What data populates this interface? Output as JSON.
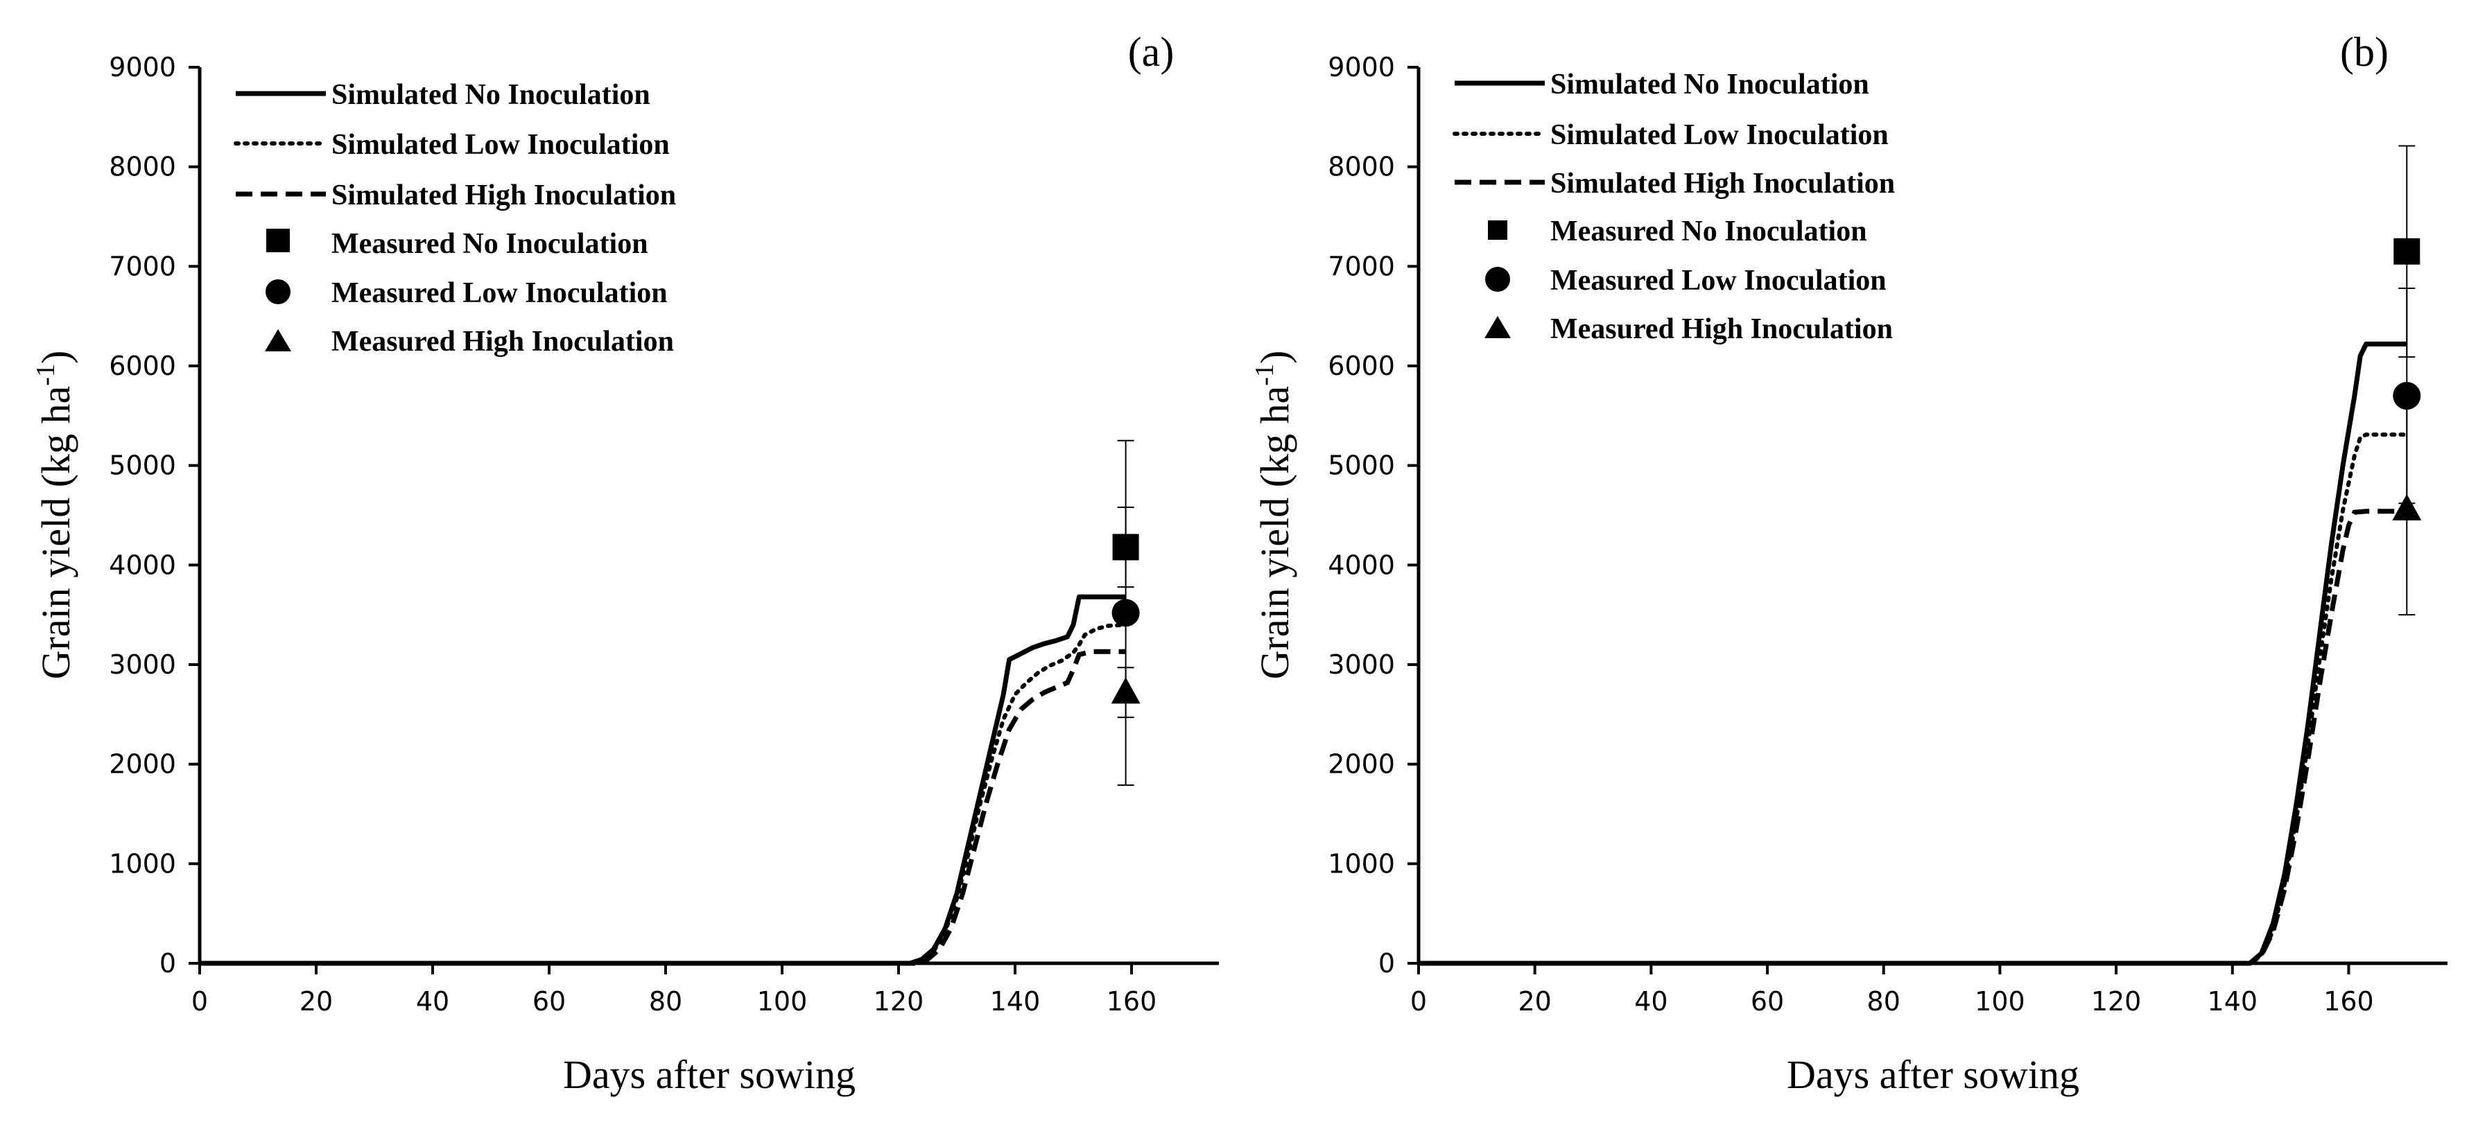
{
  "chart_data": [
    {
      "type": "line",
      "panel_label": "(a)",
      "xlabel": "Days after sowing",
      "ylabel_main": "Grain yield (kg ha",
      "ylabel_sup": "-1",
      "ylabel_close": ")",
      "xlim": [
        0,
        175
      ],
      "ylim": [
        0,
        9000
      ],
      "xticks": [
        "0",
        "20",
        "40",
        "60",
        "80",
        "100",
        "120",
        "140",
        "160"
      ],
      "yticks": [
        "0",
        "1000",
        "2000",
        "3000",
        "4000",
        "5000",
        "6000",
        "7000",
        "8000",
        "9000"
      ],
      "legend_position": "top-left",
      "series": [
        {
          "name": "Simulated No Inoculation",
          "style": "solid",
          "x": [
            0,
            122,
            124,
            126,
            128,
            130,
            132,
            134,
            136,
            138,
            139,
            141,
            143,
            145,
            147,
            149,
            150,
            151,
            152,
            155,
            159
          ],
          "y": [
            0,
            0,
            40,
            140,
            350,
            700,
            1200,
            1700,
            2200,
            2700,
            3050,
            3110,
            3170,
            3210,
            3240,
            3280,
            3400,
            3680,
            3680,
            3680,
            3680
          ]
        },
        {
          "name": "Simulated Low Inoculation",
          "style": "dotted",
          "x": [
            0,
            122,
            124,
            126,
            128,
            130,
            132,
            134,
            136,
            138,
            140,
            142,
            144,
            146,
            148,
            150,
            151,
            152,
            154,
            156,
            159
          ],
          "y": [
            0,
            0,
            30,
            120,
            320,
            650,
            1100,
            1600,
            2050,
            2450,
            2700,
            2820,
            2920,
            2990,
            3040,
            3120,
            3200,
            3300,
            3360,
            3390,
            3400
          ]
        },
        {
          "name": "Simulated High Inoculation",
          "style": "dashed",
          "x": [
            0,
            123,
            125,
            127,
            129,
            131,
            133,
            135,
            137,
            139,
            141,
            143,
            145,
            147,
            149,
            150,
            151,
            153,
            156,
            159
          ],
          "y": [
            0,
            0,
            40,
            140,
            350,
            700,
            1150,
            1600,
            2000,
            2350,
            2550,
            2650,
            2720,
            2770,
            2820,
            2950,
            3100,
            3130,
            3130,
            3130
          ]
        }
      ],
      "measured": [
        {
          "name": "Measured No Inoculation",
          "marker": "square",
          "x": 159,
          "y": 4180,
          "err": 400
        },
        {
          "name": "Measured Low Inoculation",
          "marker": "circle",
          "x": 159,
          "y": 3520,
          "err": 1730
        },
        {
          "name": "Measured High Inoculation",
          "marker": "triangle",
          "x": 159,
          "y": 2720,
          "err": 250
        }
      ]
    },
    {
      "type": "line",
      "panel_label": "(b)",
      "xlabel": "Days after sowing",
      "ylabel_main": "Grain yield (kg ha",
      "ylabel_sup": "-1",
      "ylabel_close": ")",
      "xlim": [
        0,
        177
      ],
      "ylim": [
        0,
        9000
      ],
      "xticks": [
        "0",
        "20",
        "40",
        "60",
        "80",
        "100",
        "120",
        "140",
        "160"
      ],
      "yticks": [
        "0",
        "1000",
        "2000",
        "3000",
        "4000",
        "5000",
        "6000",
        "7000",
        "8000",
        "9000"
      ],
      "legend_position": "top-left",
      "series": [
        {
          "name": "Simulated No Inoculation",
          "style": "solid",
          "x": [
            0,
            143,
            145,
            147,
            149,
            151,
            153,
            155,
            157,
            159,
            161,
            162,
            163,
            164,
            166,
            170
          ],
          "y": [
            0,
            0,
            100,
            400,
            900,
            1600,
            2400,
            3300,
            4200,
            5000,
            5700,
            6100,
            6220,
            6220,
            6220,
            6220
          ]
        },
        {
          "name": "Simulated Low Inoculation",
          "style": "dotted",
          "x": [
            0,
            143,
            145,
            147,
            149,
            151,
            153,
            155,
            157,
            159,
            161,
            162,
            163,
            165,
            170
          ],
          "y": [
            0,
            0,
            80,
            330,
            800,
            1450,
            2200,
            3050,
            3850,
            4550,
            5100,
            5280,
            5310,
            5310,
            5310
          ]
        },
        {
          "name": "Simulated High Inoculation",
          "style": "dashed",
          "x": [
            0,
            143,
            145,
            147,
            149,
            151,
            153,
            155,
            157,
            159,
            160,
            161,
            163,
            170
          ],
          "y": [
            0,
            0,
            80,
            320,
            750,
            1350,
            2050,
            2800,
            3500,
            4150,
            4400,
            4530,
            4540,
            4540
          ]
        }
      ],
      "measured": [
        {
          "name": "Measured No Inoculation",
          "marker": "square",
          "x": 170,
          "y": 7150,
          "err": 1060
        },
        {
          "name": "Measured Low Inoculation",
          "marker": "circle",
          "x": 170,
          "y": 5700,
          "err": 1080
        },
        {
          "name": "Measured High Inoculation",
          "marker": "triangle",
          "x": 170,
          "y": 4560,
          "err": 1060
        }
      ]
    }
  ]
}
